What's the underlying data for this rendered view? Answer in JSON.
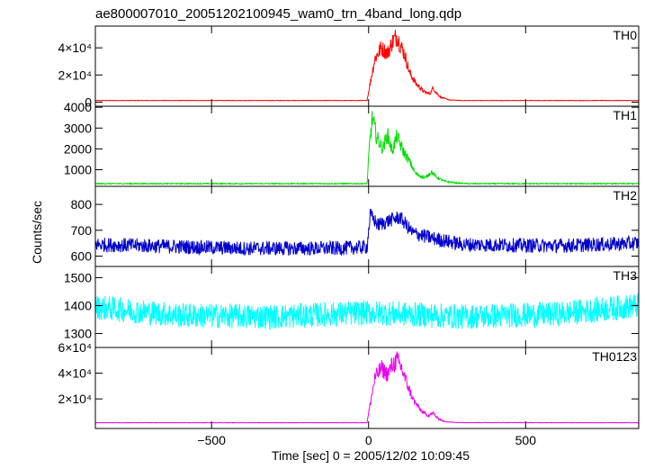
{
  "chart_data": {
    "type": "line",
    "title": "ae800007010_20051202100945_wam0_trn_4band_long.qdp",
    "xlabel": "Time [sec] 0 = 2005/12/02 10:09:45",
    "ylabel": "Counts/sec",
    "xlim": [
      -870,
      860
    ],
    "x_ticks": [
      {
        "value": -500,
        "label": "−500"
      },
      {
        "value": 0,
        "label": "0"
      },
      {
        "value": 500,
        "label": "500"
      }
    ],
    "grid": false,
    "panels": [
      {
        "name": "TH0",
        "color": "#ff0000",
        "ylim": [
          -3000,
          56000
        ],
        "baseline": 1200,
        "noise": 150,
        "y_ticks": [
          {
            "value": 0,
            "label": "0"
          },
          {
            "value": 20000,
            "label": "2×10⁴"
          },
          {
            "value": 40000,
            "label": "4×10⁴"
          }
        ],
        "envelope": [
          [
            -870,
            1200
          ],
          [
            -5,
            1200
          ],
          [
            5,
            14000
          ],
          [
            20,
            32000
          ],
          [
            40,
            40000
          ],
          [
            60,
            36000
          ],
          [
            75,
            44000
          ],
          [
            90,
            49000
          ],
          [
            100,
            43000
          ],
          [
            115,
            35000
          ],
          [
            130,
            22000
          ],
          [
            150,
            14000
          ],
          [
            175,
            8000
          ],
          [
            195,
            6000
          ],
          [
            205,
            10500
          ],
          [
            215,
            7000
          ],
          [
            230,
            3500
          ],
          [
            260,
            1500
          ],
          [
            300,
            1200
          ],
          [
            860,
            1200
          ]
        ]
      },
      {
        "name": "TH1",
        "color": "#00dd00",
        "ylim": [
          200,
          4050
        ],
        "baseline": 330,
        "noise": 25,
        "y_ticks": [
          {
            "value": 1000,
            "label": "1000"
          },
          {
            "value": 2000,
            "label": "2000"
          },
          {
            "value": 3000,
            "label": "3000"
          },
          {
            "value": 4000,
            "label": "4000"
          }
        ],
        "envelope": [
          [
            -870,
            330
          ],
          [
            -5,
            330
          ],
          [
            3,
            2200
          ],
          [
            12,
            3500
          ],
          [
            25,
            2600
          ],
          [
            45,
            2000
          ],
          [
            60,
            2700
          ],
          [
            75,
            1900
          ],
          [
            90,
            2600
          ],
          [
            110,
            1900
          ],
          [
            130,
            1400
          ],
          [
            150,
            800
          ],
          [
            180,
            600
          ],
          [
            200,
            900
          ],
          [
            215,
            650
          ],
          [
            240,
            450
          ],
          [
            280,
            360
          ],
          [
            320,
            330
          ],
          [
            860,
            330
          ]
        ]
      },
      {
        "name": "TH2",
        "color": "#0000cc",
        "ylim": [
          560,
          870
        ],
        "baseline": 640,
        "noise": 28,
        "y_ticks": [
          {
            "value": 600,
            "label": "600"
          },
          {
            "value": 700,
            "label": "700"
          },
          {
            "value": 800,
            "label": "800"
          }
        ],
        "envelope": [
          [
            -870,
            645
          ],
          [
            -400,
            630
          ],
          [
            -100,
            630
          ],
          [
            -5,
            635
          ],
          [
            5,
            760
          ],
          [
            30,
            720
          ],
          [
            70,
            740
          ],
          [
            100,
            750
          ],
          [
            140,
            690
          ],
          [
            200,
            670
          ],
          [
            300,
            645
          ],
          [
            600,
            640
          ],
          [
            860,
            650
          ]
        ]
      },
      {
        "name": "TH3",
        "color": "#00ffff",
        "ylim": [
          1250,
          1540
        ],
        "baseline": 1370,
        "noise": 45,
        "y_ticks": [
          {
            "value": 1300,
            "label": "1300"
          },
          {
            "value": 1400,
            "label": "1400"
          },
          {
            "value": 1500,
            "label": "1500"
          }
        ],
        "envelope": [
          [
            -870,
            1395
          ],
          [
            -600,
            1365
          ],
          [
            -300,
            1360
          ],
          [
            0,
            1375
          ],
          [
            300,
            1360
          ],
          [
            600,
            1370
          ],
          [
            860,
            1400
          ]
        ]
      },
      {
        "name": "TH0123",
        "color": "#ee00ee",
        "ylim": [
          -3000,
          60000
        ],
        "baseline": 1500,
        "noise": 150,
        "y_ticks": [
          {
            "value": 20000,
            "label": "2×10⁴"
          },
          {
            "value": 40000,
            "label": "4×10⁴"
          },
          {
            "value": 60000,
            "label": "6×10⁴"
          }
        ],
        "envelope": [
          [
            -870,
            1500
          ],
          [
            -5,
            1500
          ],
          [
            5,
            16000
          ],
          [
            20,
            36000
          ],
          [
            40,
            44000
          ],
          [
            60,
            39000
          ],
          [
            75,
            46000
          ],
          [
            90,
            50000
          ],
          [
            105,
            44000
          ],
          [
            125,
            30000
          ],
          [
            145,
            18000
          ],
          [
            170,
            10000
          ],
          [
            190,
            7000
          ],
          [
            205,
            9000
          ],
          [
            220,
            5000
          ],
          [
            240,
            2500
          ],
          [
            280,
            1600
          ],
          [
            860,
            1500
          ]
        ]
      }
    ]
  }
}
